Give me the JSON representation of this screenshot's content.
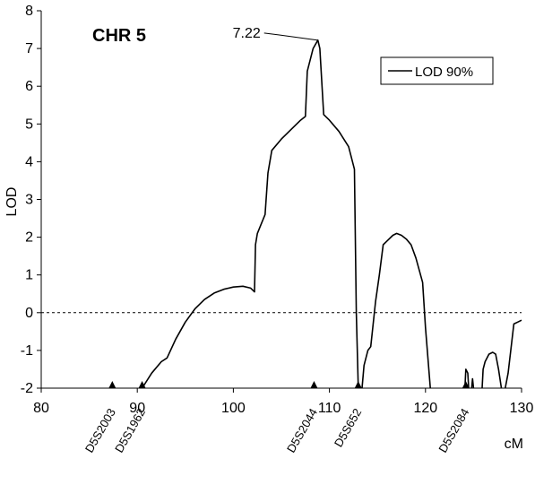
{
  "chart_data": {
    "type": "line",
    "title": "CHR 5",
    "xlabel": "cM",
    "ylabel": "LOD",
    "xlim": [
      80,
      130
    ],
    "ylim": [
      -2,
      8
    ],
    "x_ticks": [
      80,
      90,
      100,
      110,
      120,
      130
    ],
    "x_tick_labels": [
      "80",
      "90",
      "100",
      "110",
      "120",
      "130"
    ],
    "y_ticks": [
      -2,
      -1,
      0,
      1,
      2,
      3,
      4,
      5,
      6,
      7,
      8
    ],
    "y_tick_labels": [
      "-2",
      "-1",
      "0",
      "1",
      "2",
      "3",
      "4",
      "5",
      "6",
      "7",
      "8"
    ],
    "grid": false,
    "legend": {
      "position": "top-right",
      "entries": [
        "LOD 90%"
      ]
    },
    "reference_line": {
      "y": 0,
      "style": "dashed"
    },
    "peak_annotation": {
      "x": 108.8,
      "y": 7.22,
      "label": "7.22"
    },
    "markers": [
      {
        "name": "D5S2003",
        "x": 87.4
      },
      {
        "name": "D5S1962",
        "x": 90.5
      },
      {
        "name": "D5S2044",
        "x": 108.4
      },
      {
        "name": "D5S652",
        "x": 113.0
      },
      {
        "name": "D5S2084",
        "x": 124.2
      }
    ],
    "series": [
      {
        "name": "LOD 90%",
        "segments": [
          [
            [
              90.5,
              -2.0
            ],
            [
              91.5,
              -1.6
            ],
            [
              92.5,
              -1.3
            ],
            [
              93.1,
              -1.2
            ],
            [
              94.0,
              -0.7
            ],
            [
              95.0,
              -0.25
            ],
            [
              96.0,
              0.1
            ],
            [
              97.0,
              0.35
            ],
            [
              98.0,
              0.52
            ],
            [
              99.0,
              0.62
            ],
            [
              100.0,
              0.68
            ],
            [
              101.0,
              0.7
            ],
            [
              101.8,
              0.65
            ],
            [
              102.2,
              0.55
            ],
            [
              102.3,
              1.8
            ],
            [
              102.5,
              2.1
            ],
            [
              103.3,
              2.6
            ],
            [
              103.6,
              3.7
            ],
            [
              104.0,
              4.3
            ],
            [
              105.0,
              4.6
            ],
            [
              106.0,
              4.85
            ],
            [
              107.0,
              5.1
            ],
            [
              107.5,
              5.2
            ],
            [
              107.7,
              6.4
            ],
            [
              108.3,
              7.0
            ],
            [
              108.8,
              7.22
            ],
            [
              109.0,
              7.0
            ],
            [
              109.4,
              5.25
            ],
            [
              110.0,
              5.1
            ],
            [
              111.0,
              4.8
            ],
            [
              112.0,
              4.4
            ],
            [
              112.6,
              3.8
            ],
            [
              112.8,
              0.0
            ],
            [
              113.0,
              -2.0
            ]
          ],
          [
            [
              113.4,
              -2.0
            ],
            [
              113.6,
              -1.4
            ],
            [
              114.0,
              -1.0
            ],
            [
              114.3,
              -0.9
            ],
            [
              114.8,
              0.3
            ],
            [
              115.2,
              1.0
            ],
            [
              115.6,
              1.8
            ],
            [
              116.0,
              1.9
            ],
            [
              116.6,
              2.05
            ],
            [
              117.0,
              2.1
            ],
            [
              117.5,
              2.05
            ],
            [
              118.0,
              1.95
            ],
            [
              118.5,
              1.8
            ],
            [
              119.0,
              1.45
            ],
            [
              119.7,
              0.8
            ],
            [
              120.0,
              -0.4
            ],
            [
              120.5,
              -2.0
            ]
          ],
          [
            [
              124.1,
              -2.0
            ],
            [
              124.2,
              -1.5
            ],
            [
              124.4,
              -1.6
            ],
            [
              124.5,
              -2.0
            ]
          ],
          [
            [
              124.8,
              -2.0
            ],
            [
              124.9,
              -1.75
            ],
            [
              125.0,
              -2.0
            ]
          ],
          [
            [
              125.9,
              -2.0
            ],
            [
              126.0,
              -1.5
            ],
            [
              126.2,
              -1.3
            ],
            [
              126.6,
              -1.1
            ],
            [
              127.0,
              -1.05
            ],
            [
              127.3,
              -1.1
            ],
            [
              127.6,
              -1.5
            ],
            [
              127.9,
              -2.0
            ]
          ],
          [
            [
              128.3,
              -2.0
            ],
            [
              128.6,
              -1.6
            ],
            [
              129.2,
              -0.3
            ],
            [
              129.6,
              -0.25
            ],
            [
              130.0,
              -0.2
            ]
          ]
        ]
      }
    ]
  }
}
